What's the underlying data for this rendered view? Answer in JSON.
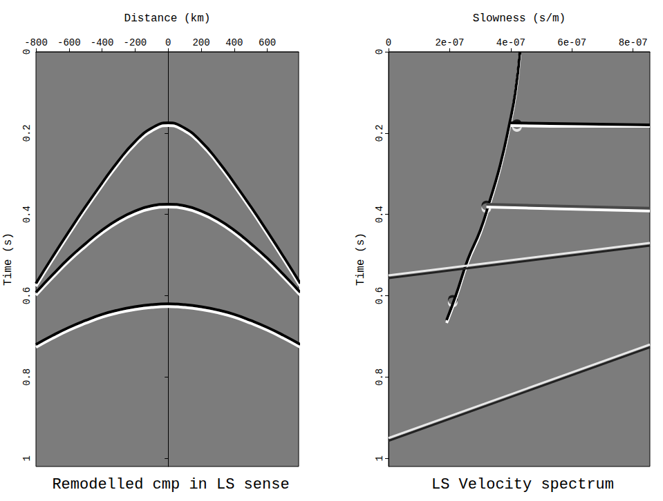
{
  "chart_data": [
    {
      "type": "line",
      "title": "Remodelled cmp in LS sense",
      "x_label": "Distance (km)",
      "y_label": "Time (s)",
      "xlim": [
        -800,
        790
      ],
      "ylim": [
        0,
        1.02
      ],
      "xticks": [
        -800,
        -600,
        -400,
        -200,
        0,
        200,
        400,
        600
      ],
      "yticks": [
        0,
        0.2,
        0.4,
        0.6,
        0.8,
        1
      ],
      "grid": false,
      "series": [
        {
          "color": "#000000",
          "line_style": "solid",
          "x": [
            -800,
            -700,
            -600,
            -500,
            -400,
            -300,
            -200,
            -100,
            0,
            100,
            200,
            300,
            400,
            500,
            600,
            700,
            800
          ],
          "values": [
            0.57,
            0.505,
            0.442,
            0.381,
            0.323,
            0.268,
            0.221,
            0.188,
            0.175,
            0.188,
            0.221,
            0.268,
            0.323,
            0.381,
            0.442,
            0.505,
            0.57
          ]
        },
        {
          "color": "#000000",
          "line_style": "solid",
          "x": [
            -800,
            -700,
            -600,
            -500,
            -400,
            -300,
            -200,
            -100,
            0,
            100,
            200,
            300,
            400,
            500,
            600,
            700,
            800
          ],
          "values": [
            0.592,
            0.549,
            0.508,
            0.472,
            0.439,
            0.412,
            0.392,
            0.379,
            0.375,
            0.379,
            0.392,
            0.412,
            0.439,
            0.472,
            0.508,
            0.549,
            0.592
          ]
        },
        {
          "color": "#000000",
          "line_style": "solid",
          "x": [
            -800,
            -700,
            -600,
            -500,
            -400,
            -300,
            -200,
            -100,
            0,
            100,
            200,
            300,
            400,
            500,
            600,
            700,
            800
          ],
          "values": [
            0.72,
            0.698,
            0.678,
            0.661,
            0.646,
            0.635,
            0.627,
            0.622,
            0.62,
            0.622,
            0.627,
            0.635,
            0.646,
            0.661,
            0.678,
            0.698,
            0.72
          ]
        }
      ]
    },
    {
      "type": "line",
      "title": "LS Velocity spectrum",
      "x_label": "Slowness (s/m)",
      "y_label": "Time (s)",
      "xlim": [
        0,
        8.55e-07
      ],
      "ylim": [
        0,
        1.02
      ],
      "xticks": [
        0,
        {
          "value": 2e-07,
          "label": "2e-07"
        },
        {
          "value": 4e-07,
          "label": "4e-07"
        },
        {
          "value": 6e-07,
          "label": "6e-07"
        },
        {
          "value": 8e-07,
          "label": "8e-07"
        }
      ],
      "yticks": [
        0,
        0.2,
        0.4,
        0.6,
        0.8,
        1
      ],
      "grid": false,
      "series": [
        {
          "color": "#000000",
          "line_style": "solid",
          "x": [
            4.3e-07,
            4.15e-07,
            3.95e-07,
            3.65e-07,
            3.3e-07,
            3e-07,
            2.6e-07,
            2.2e-07,
            1.9e-07
          ],
          "values": [
            0.0,
            0.1,
            0.18,
            0.28,
            0.37,
            0.44,
            0.51,
            0.6,
            0.66
          ]
        },
        {
          "color": "#000000",
          "line_style": "solid",
          "x": [
            4e-07,
            8.55e-07
          ],
          "values": [
            0.175,
            0.18
          ]
        },
        {
          "color": "#4a4a4a",
          "line_style": "solid",
          "x": [
            3.2e-07,
            8.55e-07
          ],
          "values": [
            0.375,
            0.385
          ]
        },
        {
          "color": "#e8e8e8",
          "line_style": "solid",
          "x": [
            0,
            8.55e-07
          ],
          "values": [
            0.55,
            0.47
          ]
        },
        {
          "color": "#e8e8e8",
          "line_style": "solid",
          "x": [
            0,
            8.55e-07
          ],
          "values": [
            0.95,
            0.72
          ]
        },
        {
          "type": "scatter",
          "marker": "circle",
          "color": "#000000",
          "x": [
            4.2e-07,
            3.2e-07,
            2.1e-07
          ],
          "values": [
            0.178,
            0.378,
            0.61
          ]
        }
      ]
    }
  ]
}
